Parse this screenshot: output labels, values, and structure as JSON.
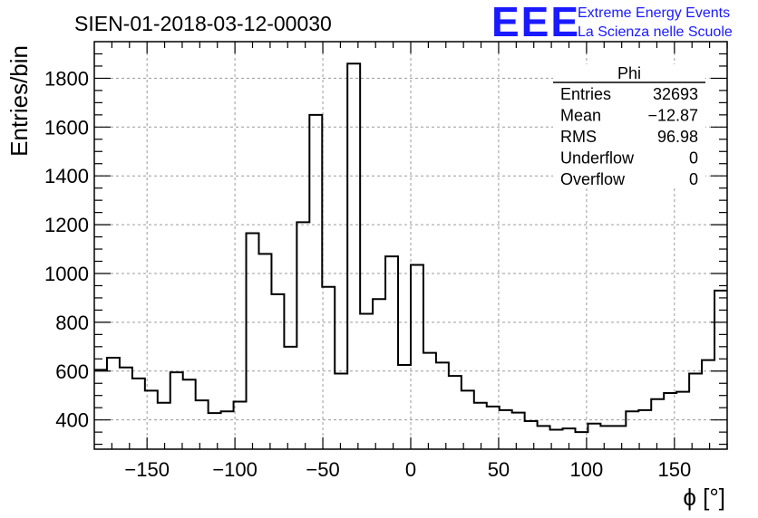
{
  "title": "SIEN-01-2018-03-12-00030",
  "logo": {
    "mark": "EEE",
    "line1": "Extreme Energy Events",
    "line2": "La Scienza nelle Scuole",
    "color": "#1a1aff"
  },
  "stats": {
    "name": "Phi",
    "rows": [
      {
        "label": "Entries",
        "value": "32693"
      },
      {
        "label": "Mean",
        "value": "−12.87"
      },
      {
        "label": "RMS",
        "value": "96.98"
      },
      {
        "label": "Underflow",
        "value": "0"
      },
      {
        "label": "Overflow",
        "value": "0"
      }
    ]
  },
  "chart_data": {
    "type": "bar",
    "style": "step-histogram",
    "xlabel": "ϕ [°]",
    "ylabel": "Entries/bin",
    "xlim": [
      -180,
      180
    ],
    "ylim": [
      280,
      1950
    ],
    "grid": true,
    "bin_width": 7.2,
    "x_ticks": [
      -150,
      -100,
      -50,
      0,
      50,
      100,
      150
    ],
    "y_ticks": [
      400,
      600,
      800,
      1000,
      1200,
      1400,
      1600,
      1800
    ],
    "values": [
      605,
      655,
      615,
      570,
      520,
      470,
      595,
      565,
      480,
      428,
      435,
      475,
      1165,
      1080,
      915,
      700,
      1210,
      1650,
      945,
      590,
      1860,
      835,
      895,
      1070,
      625,
      1035,
      675,
      635,
      580,
      520,
      470,
      455,
      440,
      430,
      395,
      375,
      360,
      365,
      350,
      385,
      375,
      375,
      435,
      440,
      485,
      510,
      515,
      590,
      645,
      930
    ]
  }
}
